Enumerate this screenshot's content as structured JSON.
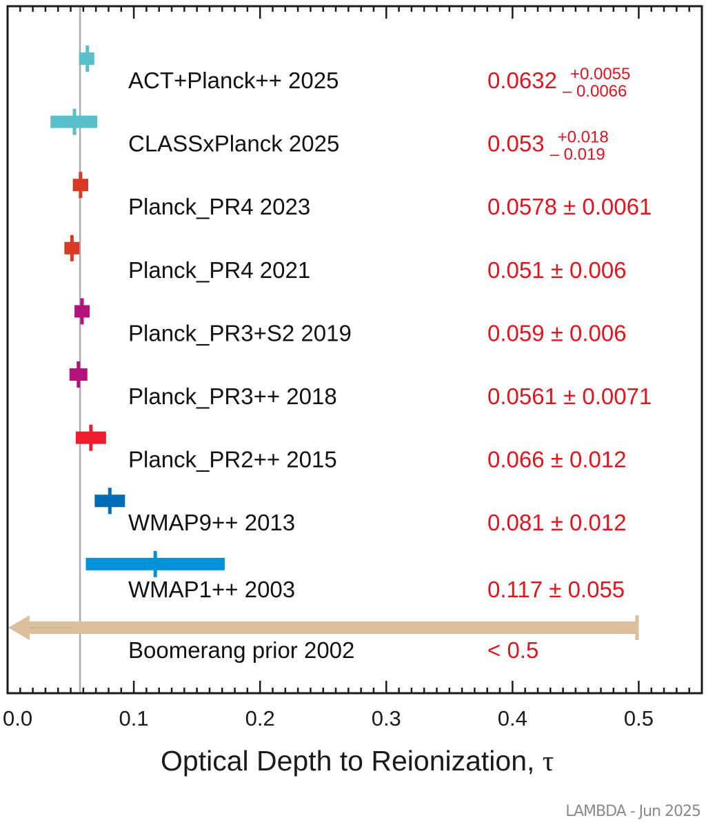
{
  "chart_data": {
    "type": "forest",
    "title": "",
    "xlabel": "Optical Depth to Reionization, ",
    "xlabel_symbol": "τ",
    "xlim": [
      0.0,
      0.55
    ],
    "xticks": [
      {
        "value": 0.0,
        "label": "0.0"
      },
      {
        "value": 0.1,
        "label": "0.1"
      },
      {
        "value": 0.2,
        "label": "0.2"
      },
      {
        "value": 0.3,
        "label": "0.3"
      },
      {
        "value": 0.4,
        "label": "0.4"
      },
      {
        "value": 0.5,
        "label": "0.5"
      }
    ],
    "minor_tick_step": 0.01,
    "reference_line": 0.0574,
    "grid": false,
    "series": [
      {
        "name": "ACT+Planck++ 2025",
        "value": 0.0632,
        "err_plus": 0.0055,
        "err_minus": 0.0066,
        "label_main": "0.0632",
        "label_plus": "+0.0055",
        "label_minus": "– 0.0066",
        "asymmetric": true,
        "color": "#5bbfcb"
      },
      {
        "name": "CLASSxPlanck 2025",
        "value": 0.053,
        "err_plus": 0.018,
        "err_minus": 0.019,
        "label_main": "0.053",
        "label_plus": "+0.018",
        "label_minus": "– 0.019",
        "asymmetric": true,
        "color": "#5bbfcb"
      },
      {
        "name": "Planck_PR4 2023",
        "value": 0.0578,
        "err_plus": 0.0061,
        "err_minus": 0.0061,
        "label_main": "0.0578 ± 0.0061",
        "asymmetric": false,
        "color": "#db3a22"
      },
      {
        "name": "Planck_PR4 2021",
        "value": 0.051,
        "err_plus": 0.006,
        "err_minus": 0.006,
        "label_main": "0.051 ± 0.006",
        "asymmetric": false,
        "color": "#db3a22"
      },
      {
        "name": "Planck_PR3+S2 2019",
        "value": 0.059,
        "err_plus": 0.006,
        "err_minus": 0.006,
        "label_main": "0.059 ± 0.006",
        "asymmetric": false,
        "color": "#b5137c"
      },
      {
        "name": "Planck_PR3++ 2018",
        "value": 0.0561,
        "err_plus": 0.0071,
        "err_minus": 0.0071,
        "label_main": "0.0561 ± 0.0071",
        "asymmetric": false,
        "color": "#b5137c"
      },
      {
        "name": "Planck_PR2++ 2015",
        "value": 0.066,
        "err_plus": 0.012,
        "err_minus": 0.012,
        "label_main": "0.066 ± 0.012",
        "asymmetric": false,
        "color": "#ee1c2e"
      },
      {
        "name": "WMAP9++ 2013",
        "value": 0.081,
        "err_plus": 0.012,
        "err_minus": 0.012,
        "label_main": "0.081 ± 0.012",
        "asymmetric": false,
        "color": "#006bb6"
      },
      {
        "name": "WMAP1++ 2003",
        "value": 0.117,
        "err_plus": 0.055,
        "err_minus": 0.055,
        "label_main": "0.117 ± 0.055",
        "asymmetric": false,
        "color": "#0092d8"
      }
    ],
    "upper_limit": {
      "name": "Boomerang prior 2002",
      "limit": 0.5,
      "label_main": "< 0.5",
      "color": "#dcbf9d"
    },
    "credit": "LAMBDA - Jun 2025"
  },
  "colors": {
    "value_text": "#e0141e",
    "frame": "#1a1a1a",
    "reference_line": "#a8abae"
  }
}
